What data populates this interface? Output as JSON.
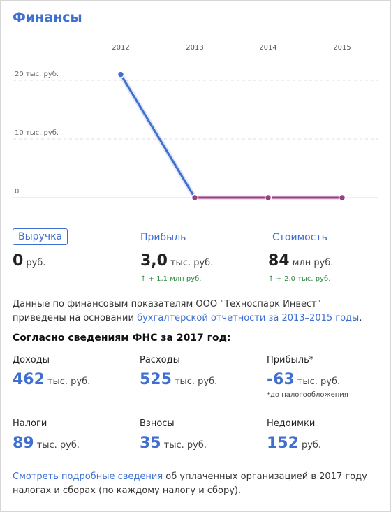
{
  "section_title": "Финансы",
  "chart_data": {
    "type": "line",
    "categories": [
      "2012",
      "2013",
      "2014",
      "2015"
    ],
    "values": [
      21,
      0,
      0,
      0
    ],
    "y_ticks": [
      {
        "value": 20,
        "label": "20 тыс. руб."
      },
      {
        "value": 10,
        "label": "10 тыс. руб."
      },
      {
        "value": 0,
        "label": "0"
      }
    ],
    "ylim": [
      0,
      21
    ],
    "grid": true,
    "colors": {
      "rising": "#3f6fd1",
      "flat": "#9b3d86",
      "point_fill": "#ffffff"
    }
  },
  "metrics": [
    {
      "label": "Выручка",
      "value": "0",
      "unit": "руб.",
      "delta": ""
    },
    {
      "label": "Прибыль",
      "value": "3,0",
      "unit": "тыс. руб.",
      "delta": "↑ + 1,1 млн руб."
    },
    {
      "label": "Стоимость",
      "value": "84",
      "unit": "млн руб.",
      "delta": "↑ + 2,0 тыс. руб."
    }
  ],
  "description": {
    "text": "Данные по финансовым показателям ООО \"Техноспарк Инвест\" приведены на основании ",
    "link": "бухгалтерской отчетности за 2013–2015 годы",
    "end": "."
  },
  "fns": {
    "title": "Согласно сведениям ФНС за 2017 год:",
    "items": [
      {
        "label": "Доходы",
        "value": "462",
        "unit": "тыс. руб.",
        "note": ""
      },
      {
        "label": "Расходы",
        "value": "525",
        "unit": "тыс. руб.",
        "note": ""
      },
      {
        "label": "Прибыль*",
        "value": "-63",
        "unit": "тыс. руб.",
        "note": "*до налогообложения"
      },
      {
        "label": "Налоги",
        "value": "89",
        "unit": "тыс. руб.",
        "note": ""
      },
      {
        "label": "Взносы",
        "value": "35",
        "unit": "тыс. руб.",
        "note": ""
      },
      {
        "label": "Недоимки",
        "value": "152",
        "unit": "руб.",
        "note": ""
      }
    ]
  },
  "footer": {
    "link": "Смотреть подробные сведения",
    "text": " об уплаченных организацией в 2017 году налогах и сборах (по каждому налогу и сбору)."
  }
}
